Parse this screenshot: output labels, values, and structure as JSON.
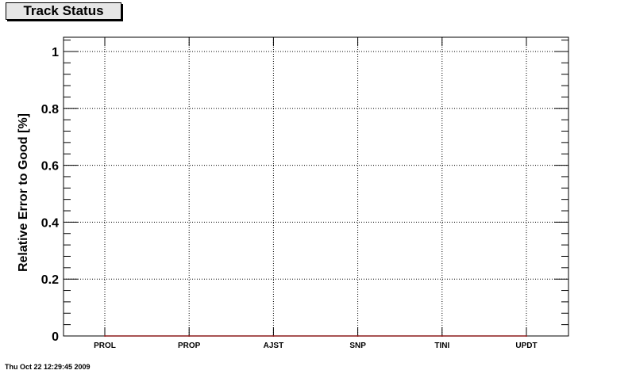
{
  "title": "Track Status",
  "timestamp": "Thu Oct 22 12:29:45 2009",
  "chart_data": {
    "type": "line",
    "title": "Track Status",
    "xlabel": "",
    "ylabel": "Relative Error to Good [%]",
    "categories": [
      "PROL",
      "PROP",
      "AJST",
      "SNP",
      "TINI",
      "UPDT"
    ],
    "series": [
      {
        "values": [
          0,
          0,
          0,
          0,
          0,
          0
        ],
        "color": "#8b1a1a"
      }
    ],
    "ylim": [
      0,
      1.05
    ],
    "yticks": [
      0,
      0.2,
      0.4,
      0.6,
      0.8,
      1
    ],
    "ytick_labels": [
      "0",
      "0.2",
      "0.4",
      "0.6",
      "0.8",
      "1"
    ],
    "grid": true
  }
}
